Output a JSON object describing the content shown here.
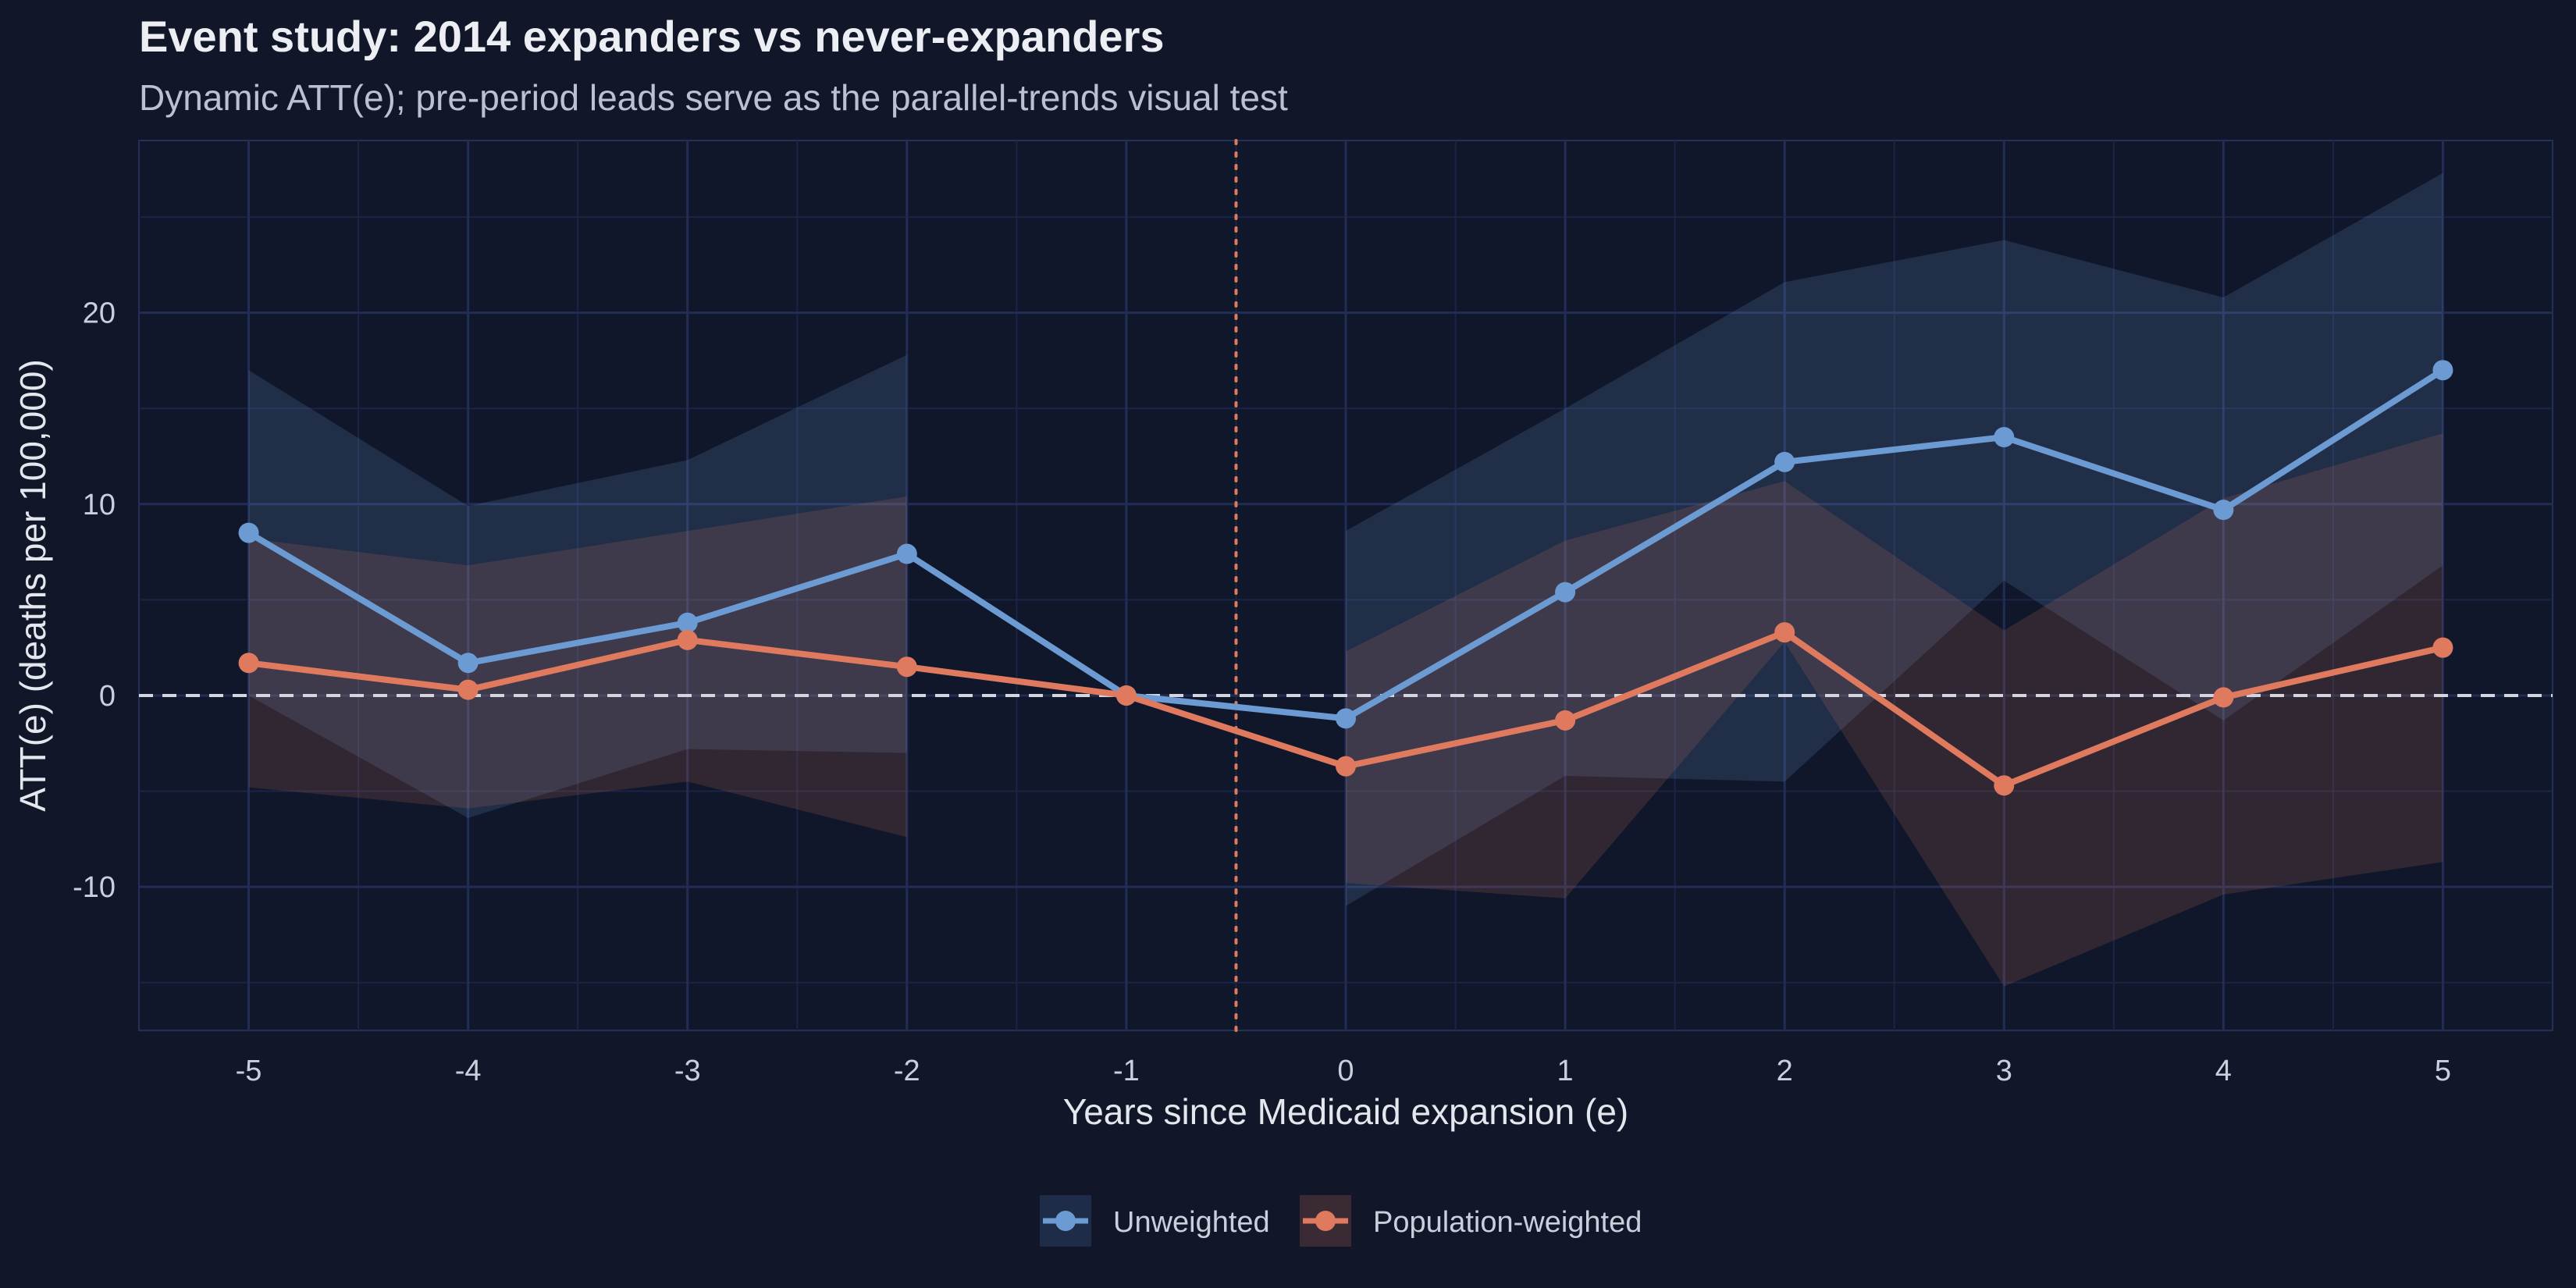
{
  "chart_data": {
    "type": "line",
    "title": "Event study: 2014 expanders vs never-expanders",
    "subtitle": "Dynamic ATT(e); pre-period leads serve as the parallel-trends visual test",
    "xlabel": "Years since Medicaid expansion (e)",
    "ylabel": "ATT(e) (deaths per 100,000)",
    "xlim": [
      -5.5,
      5.5
    ],
    "ylim": [
      -17.5,
      29.0
    ],
    "x_ticks": [
      -5,
      -4,
      -3,
      -2,
      -1,
      0,
      1,
      2,
      3,
      4,
      5
    ],
    "x_tick_labels": [
      "-5",
      "-4",
      "-3",
      "-2",
      "-1",
      "0",
      "1",
      "2",
      "3",
      "4",
      "5"
    ],
    "y_ticks": [
      -10,
      0,
      10,
      20
    ],
    "y_tick_labels": [
      "-10",
      "0",
      "10",
      "20"
    ],
    "reference_hline": 0,
    "reference_vline": -0.5,
    "grid": true,
    "legend_position": "bottom",
    "series": [
      {
        "name": "Unweighted",
        "color": "#6B9BD2",
        "x": [
          -5,
          -4,
          -3,
          -2,
          -1,
          0,
          1,
          2,
          3,
          4,
          5
        ],
        "values": [
          8.5,
          1.7,
          3.8,
          7.4,
          0.0,
          -1.2,
          5.4,
          12.2,
          13.5,
          9.7,
          17.0
        ],
        "ci_pre": {
          "x": [
            -5,
            -4,
            -3,
            -2
          ],
          "lower": [
            0.0,
            -6.4,
            -2.8,
            -3.0
          ],
          "upper": [
            17.0,
            9.9,
            12.3,
            17.8
          ]
        },
        "ci_post": {
          "x": [
            0,
            1,
            2,
            3,
            4,
            5
          ],
          "lower": [
            -11.0,
            -4.2,
            -4.5,
            6.0,
            -1.3,
            6.8
          ],
          "upper": [
            8.6,
            15.0,
            21.6,
            23.8,
            20.8,
            27.3
          ]
        }
      },
      {
        "name": "Population-weighted",
        "color": "#E07A5F",
        "x": [
          -5,
          -4,
          -3,
          -2,
          -1,
          0,
          1,
          2,
          3,
          4,
          5
        ],
        "values": [
          1.7,
          0.3,
          2.9,
          1.5,
          0.0,
          -3.7,
          -1.3,
          3.3,
          -4.7,
          -0.1,
          2.5
        ],
        "ci_pre": {
          "x": [
            -5,
            -4,
            -3,
            -2
          ],
          "lower": [
            -4.8,
            -5.9,
            -4.5,
            -7.4
          ],
          "upper": [
            8.2,
            6.8,
            8.6,
            10.4
          ]
        },
        "ci_post": {
          "x": [
            0,
            1,
            2,
            3,
            4,
            5
          ],
          "lower": [
            -9.8,
            -10.6,
            2.8,
            -15.2,
            -10.4,
            -8.7
          ],
          "upper": [
            2.3,
            8.1,
            11.2,
            3.4,
            10.3,
            13.7
          ]
        }
      }
    ]
  }
}
